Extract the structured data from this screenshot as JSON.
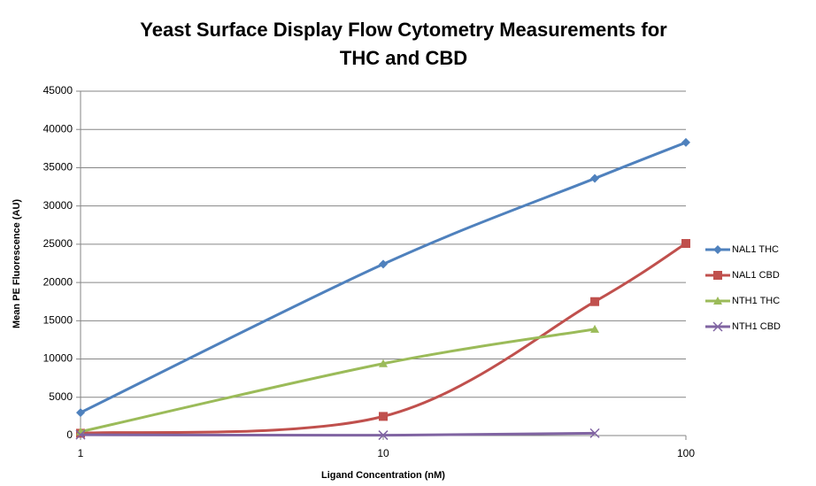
{
  "chart_data": {
    "type": "line",
    "title": "Yeast Surface Display Flow Cytometry Measurements for THC and CBD",
    "x_label": "Ligand Concentration (nM)",
    "y_label": "Mean PE Fluorescence (AU)",
    "x": [
      1,
      10,
      50,
      100
    ],
    "x_scale": "log",
    "xlim": [
      1,
      100
    ],
    "xticks": [
      1,
      10,
      100
    ],
    "ylim": [
      0,
      45000
    ],
    "yticks": [
      0,
      5000,
      10000,
      15000,
      20000,
      25000,
      30000,
      35000,
      40000,
      45000
    ],
    "grid": true,
    "smooth": true,
    "legend": "right",
    "series": [
      {
        "name": "NAL1 THC",
        "color": "#4f81bd",
        "marker": "diamond",
        "values": [
          3000,
          22400,
          33600,
          38300
        ]
      },
      {
        "name": "NAL1 CBD",
        "color": "#c0504d",
        "marker": "square",
        "values": [
          300,
          2500,
          17500,
          25100
        ]
      },
      {
        "name": "NTH1 THC",
        "color": "#9bbb59",
        "marker": "triangle",
        "values": [
          500,
          9400,
          13900,
          null
        ]
      },
      {
        "name": "NTH1 CBD",
        "color": "#8064a2",
        "marker": "x",
        "values": [
          100,
          50,
          300,
          null
        ]
      }
    ]
  }
}
